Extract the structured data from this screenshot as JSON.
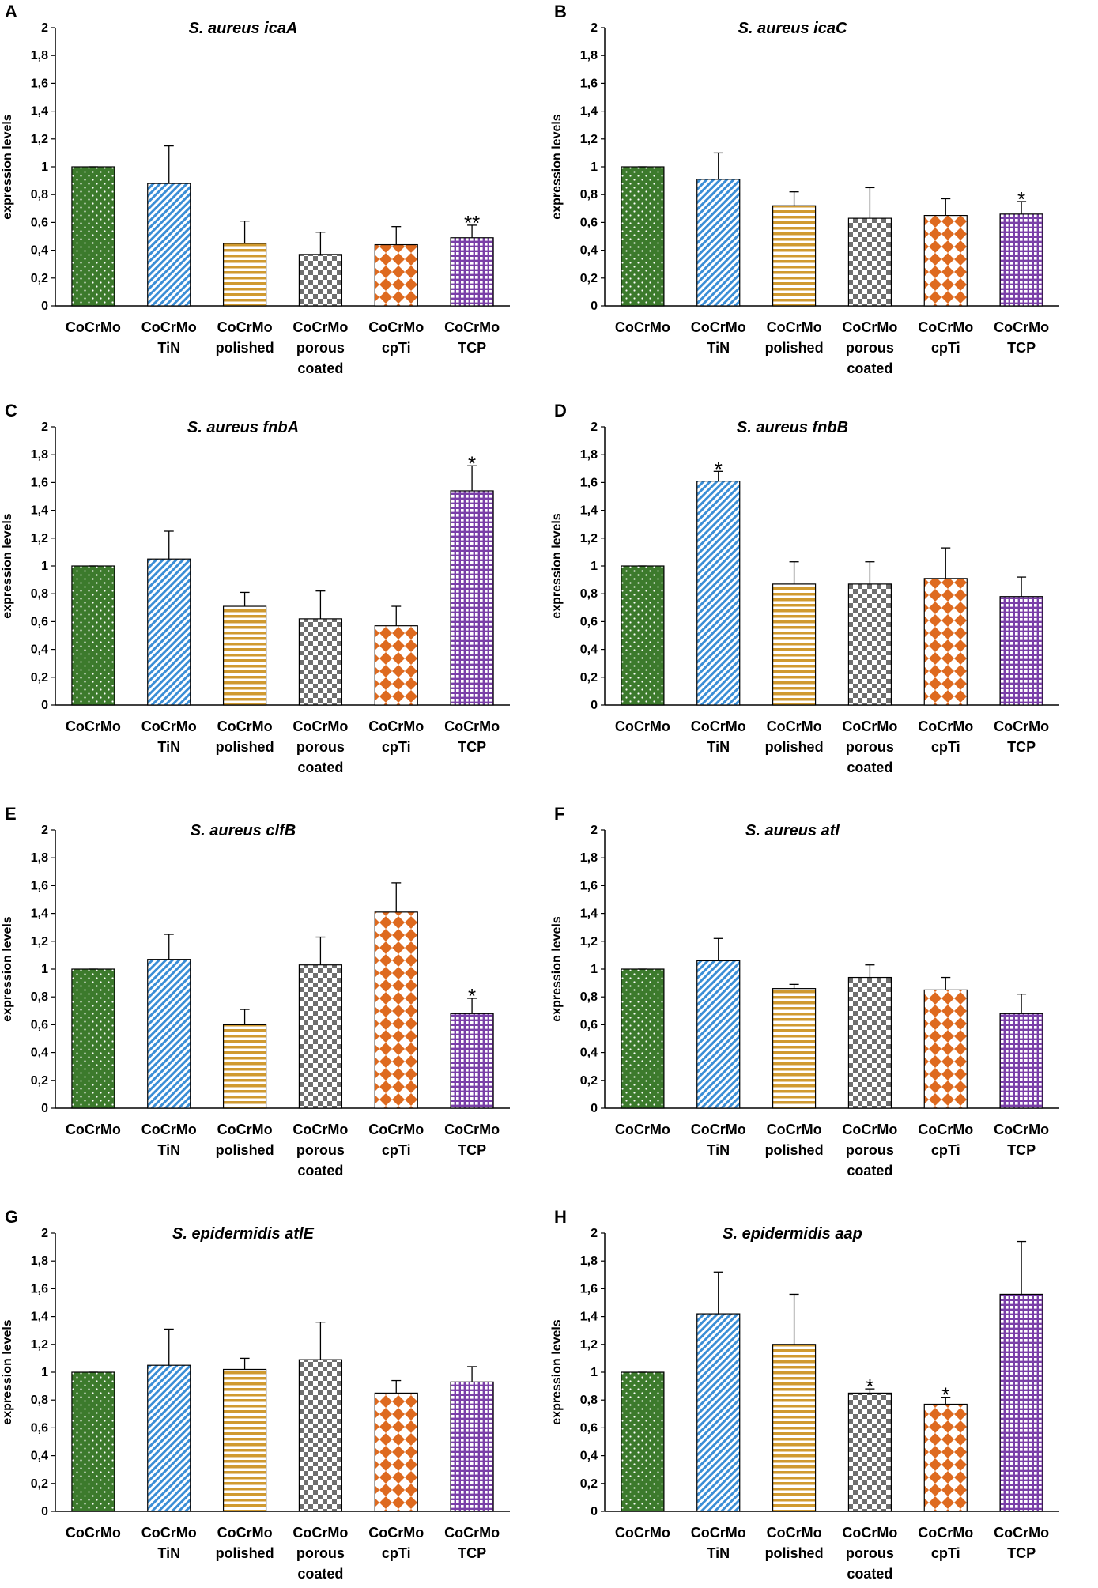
{
  "chart_data": [
    {
      "panel": "A",
      "type": "bar",
      "title": "S. aureus icaA",
      "ylabel": "expression levels",
      "xlabel": "",
      "ylim": [
        0,
        2
      ],
      "yticks": [
        "0",
        "0,2",
        "0,4",
        "0,6",
        "0,8",
        "1",
        "1,2",
        "1,4",
        "1,6",
        "1,8",
        "2"
      ],
      "categories": [
        "CoCrMo",
        "CoCrMo TiN",
        "CoCrMo polished",
        "CoCrMo porous coated",
        "CoCrMo cpTi",
        "CoCrMo TCP"
      ],
      "values": [
        1.0,
        0.88,
        0.45,
        0.37,
        0.44,
        0.49
      ],
      "errors": [
        0.0,
        0.27,
        0.16,
        0.16,
        0.13,
        0.09
      ],
      "significance": [
        "",
        "",
        "",
        "",
        "",
        "**"
      ]
    },
    {
      "panel": "B",
      "type": "bar",
      "title": "S. aureus icaC",
      "ylabel": "expression levels",
      "xlabel": "",
      "ylim": [
        0,
        2
      ],
      "yticks": [
        "0",
        "0,2",
        "0,4",
        "0,6",
        "0,8",
        "1",
        "1,2",
        "1,4",
        "1,6",
        "1,8",
        "2"
      ],
      "categories": [
        "CoCrMo",
        "CoCrMo TiN",
        "CoCrMo polished",
        "CoCrMo porous coated",
        "CoCrMo cpTi",
        "CoCrMo TCP"
      ],
      "values": [
        1.0,
        0.91,
        0.72,
        0.63,
        0.65,
        0.66
      ],
      "errors": [
        0.0,
        0.19,
        0.1,
        0.22,
        0.12,
        0.09
      ],
      "significance": [
        "",
        "",
        "",
        "",
        "",
        "*"
      ]
    },
    {
      "panel": "C",
      "type": "bar",
      "title": "S. aureus fnbA",
      "ylabel": "expression levels",
      "xlabel": "",
      "ylim": [
        0,
        2
      ],
      "yticks": [
        "0",
        "0,2",
        "0,4",
        "0,6",
        "0,8",
        "1",
        "1,2",
        "1,4",
        "1,6",
        "1,8",
        "2"
      ],
      "categories": [
        "CoCrMo",
        "CoCrMo TiN",
        "CoCrMo polished",
        "CoCrMo porous coated",
        "CoCrMo cpTi",
        "CoCrMo TCP"
      ],
      "values": [
        1.0,
        1.05,
        0.71,
        0.62,
        0.57,
        1.54
      ],
      "errors": [
        0.0,
        0.2,
        0.1,
        0.2,
        0.14,
        0.18
      ],
      "significance": [
        "",
        "",
        "",
        "",
        "",
        "*"
      ]
    },
    {
      "panel": "D",
      "type": "bar",
      "title": "S. aureus fnbB",
      "ylabel": "expression levels",
      "xlabel": "",
      "ylim": [
        0,
        2
      ],
      "yticks": [
        "0",
        "0,2",
        "0,4",
        "0,6",
        "0,8",
        "1",
        "1,2",
        "1,4",
        "1,6",
        "1,8",
        "2"
      ],
      "categories": [
        "CoCrMo",
        "CoCrMo TiN",
        "CoCrMo polished",
        "CoCrMo porous coated",
        "CoCrMo cpTi",
        "CoCrMo TCP"
      ],
      "values": [
        1.0,
        1.61,
        0.87,
        0.87,
        0.91,
        0.78
      ],
      "errors": [
        0.0,
        0.07,
        0.16,
        0.16,
        0.22,
        0.14
      ],
      "significance": [
        "",
        "*",
        "",
        "",
        "",
        ""
      ]
    },
    {
      "panel": "E",
      "type": "bar",
      "title": "S. aureus clfB",
      "ylabel": "expression levels",
      "xlabel": "",
      "ylim": [
        0,
        2
      ],
      "yticks": [
        "0",
        "0,2",
        "0,4",
        "0,6",
        "0,8",
        "1",
        "1,2",
        "1,4",
        "1,6",
        "1,8",
        "2"
      ],
      "categories": [
        "CoCrMo",
        "CoCrMo TiN",
        "CoCrMo polished",
        "CoCrMo porous coated",
        "CoCrMo cpTi",
        "CoCrMo TCP"
      ],
      "values": [
        1.0,
        1.07,
        0.6,
        1.03,
        1.41,
        0.68
      ],
      "errors": [
        0.0,
        0.18,
        0.11,
        0.2,
        0.21,
        0.11
      ],
      "significance": [
        "",
        "",
        "",
        "",
        "",
        "*"
      ]
    },
    {
      "panel": "F",
      "type": "bar",
      "title": "S. aureus atl",
      "ylabel": "expression levels",
      "xlabel": "",
      "ylim": [
        0,
        2
      ],
      "yticks": [
        "0",
        "0,2",
        "0,4",
        "0,6",
        "0,8",
        "1",
        "1,2",
        "1,4",
        "1,6",
        "1,8",
        "2"
      ],
      "categories": [
        "CoCrMo",
        "CoCrMo TiN",
        "CoCrMo polished",
        "CoCrMo porous coated",
        "CoCrMo cpTi",
        "CoCrMo TCP"
      ],
      "values": [
        1.0,
        1.06,
        0.86,
        0.94,
        0.85,
        0.68
      ],
      "errors": [
        0.0,
        0.16,
        0.03,
        0.09,
        0.09,
        0.14
      ],
      "significance": [
        "",
        "",
        "",
        "",
        "",
        ""
      ]
    },
    {
      "panel": "G",
      "type": "bar",
      "title": "S. epidermidis atlE",
      "ylabel": "expression levels",
      "xlabel": "",
      "ylim": [
        0,
        2
      ],
      "yticks": [
        "0",
        "0,2",
        "0,4",
        "0,6",
        "0,8",
        "1",
        "1,2",
        "1,4",
        "1,6",
        "1,8",
        "2"
      ],
      "categories": [
        "CoCrMo",
        "CoCrMo TiN",
        "CoCrMo polished",
        "CoCrMo porous coated",
        "CoCrMo cpTi",
        "CoCrMo TCP"
      ],
      "values": [
        1.0,
        1.05,
        1.02,
        1.09,
        0.85,
        0.93
      ],
      "errors": [
        0.0,
        0.26,
        0.08,
        0.27,
        0.09,
        0.11
      ],
      "significance": [
        "",
        "",
        "",
        "",
        "",
        ""
      ]
    },
    {
      "panel": "H",
      "type": "bar",
      "title": "S. epidermidis aap",
      "ylabel": "expression levels",
      "xlabel": "",
      "ylim": [
        0,
        2
      ],
      "yticks": [
        "0",
        "0,2",
        "0,4",
        "0,6",
        "0,8",
        "1",
        "1,2",
        "1,4",
        "1,6",
        "1,8",
        "2"
      ],
      "categories": [
        "CoCrMo",
        "CoCrMo TiN",
        "CoCrMo polished",
        "CoCrMo porous coated",
        "CoCrMo cpTi",
        "CoCrMo TCP"
      ],
      "values": [
        1.0,
        1.42,
        1.2,
        0.85,
        0.77,
        1.56
      ],
      "errors": [
        0.0,
        0.3,
        0.36,
        0.03,
        0.05,
        0.38
      ],
      "significance": [
        "",
        "",
        "",
        "*",
        "*",
        ""
      ]
    }
  ],
  "colors": {
    "green": "#3c7a2c",
    "blue": "#3b8ed6",
    "gold": "#d09a30",
    "gray": "#6f6f6f",
    "orange": "#de6a1f",
    "purple": "#7a3fa8"
  }
}
